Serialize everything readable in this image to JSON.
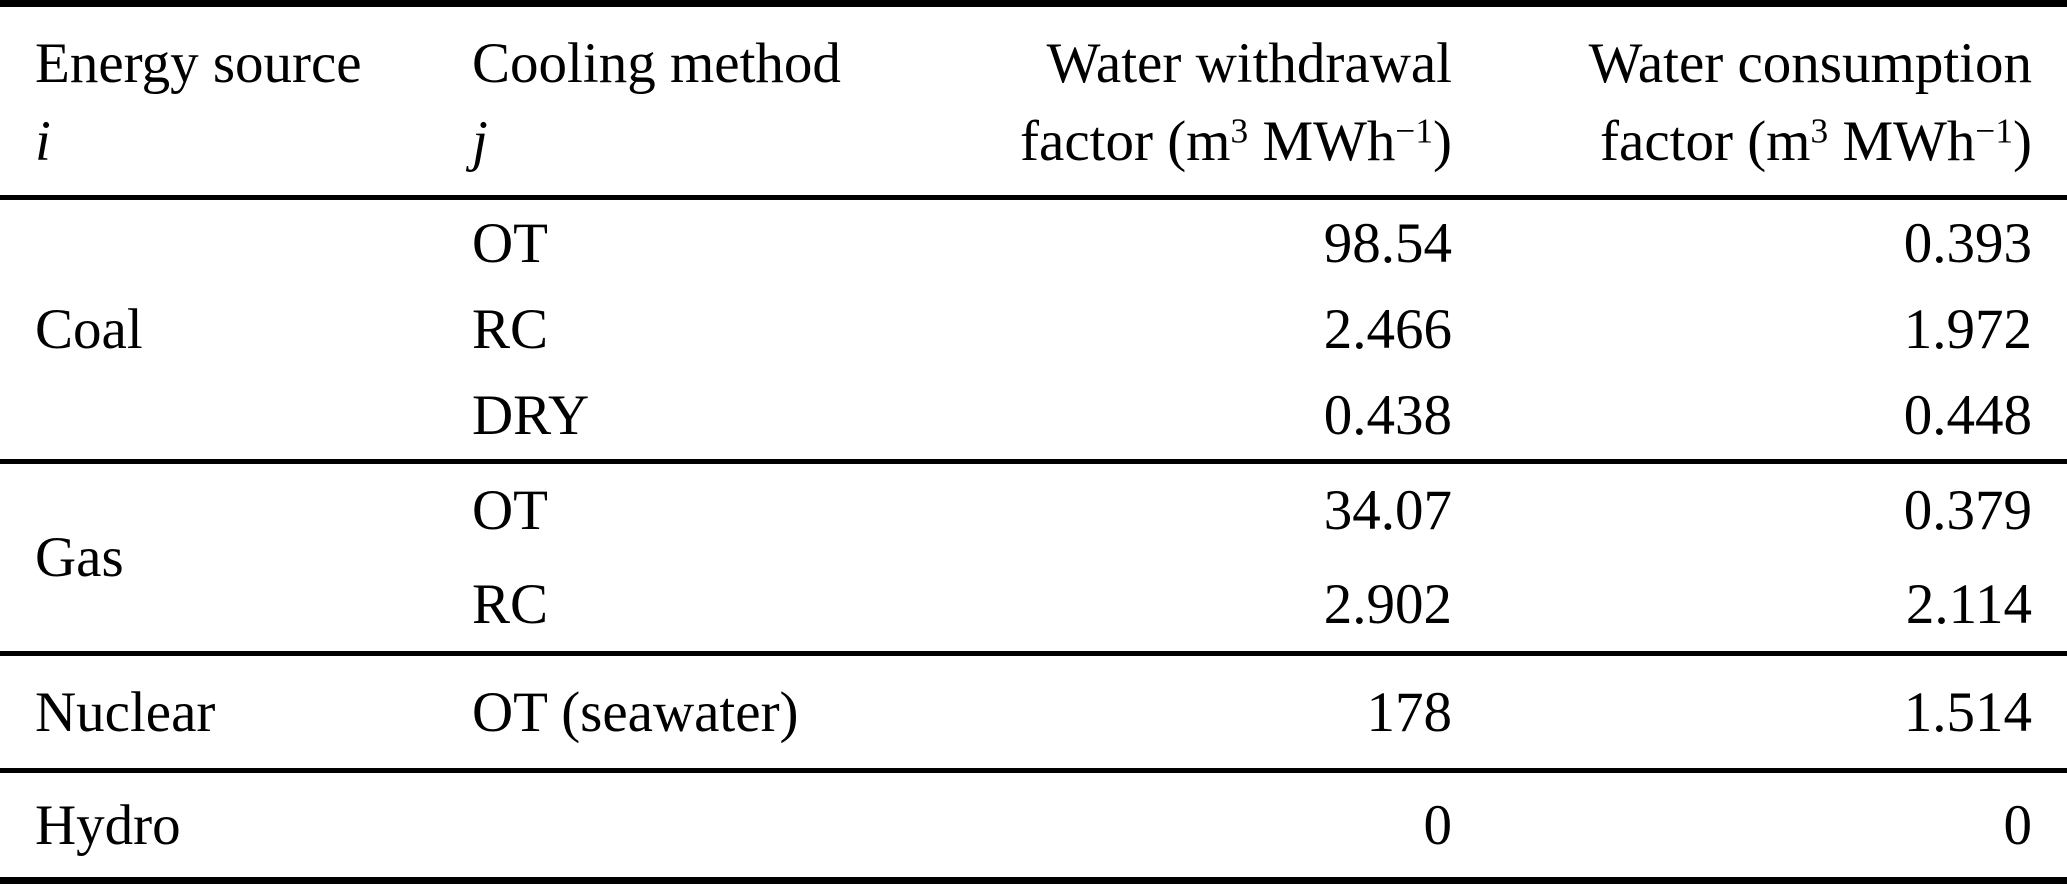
{
  "table": {
    "columns": {
      "energy": {
        "line1": "Energy source",
        "line2": "i"
      },
      "cooling": {
        "line1": "Cooling method",
        "line2": "j"
      },
      "withdrawal": {
        "line1": "Water withdrawal",
        "unit_prefix": "factor (m",
        "unit_sup_exp": "3",
        "unit_mid": " MWh",
        "unit_sup_neg": "−1",
        "unit_suffix": ")"
      },
      "consumption": {
        "line1": "Water consumption",
        "unit_prefix": "factor (m",
        "unit_sup_exp": "3",
        "unit_mid": " MWh",
        "unit_sup_neg": "−1",
        "unit_suffix": ")"
      }
    },
    "groups": [
      {
        "energy_source": "Coal",
        "rows": [
          {
            "cooling": "OT",
            "withdrawal": "98.54",
            "consumption": "0.393"
          },
          {
            "cooling": "RC",
            "withdrawal": "2.466",
            "consumption": "1.972"
          },
          {
            "cooling": "DRY",
            "withdrawal": "0.438",
            "consumption": "0.448"
          }
        ]
      },
      {
        "energy_source": "Gas",
        "rows": [
          {
            "cooling": "OT",
            "withdrawal": "34.07",
            "consumption": "0.379"
          },
          {
            "cooling": "RC",
            "withdrawal": "2.902",
            "consumption": "2.114"
          }
        ]
      },
      {
        "energy_source": "Nuclear",
        "rows": [
          {
            "cooling": "OT (seawater)",
            "withdrawal": "178",
            "consumption": "1.514"
          }
        ]
      },
      {
        "energy_source": "Hydro",
        "rows": [
          {
            "cooling": "",
            "withdrawal": "0",
            "consumption": "0"
          }
        ]
      }
    ]
  },
  "chart_data": {
    "type": "table",
    "columns": [
      "Energy source i",
      "Cooling method j",
      "Water withdrawal factor (m3 MWh-1)",
      "Water consumption factor (m3 MWh-1)"
    ],
    "rows": [
      [
        "Coal",
        "OT",
        98.54,
        0.393
      ],
      [
        "Coal",
        "RC",
        2.466,
        1.972
      ],
      [
        "Coal",
        "DRY",
        0.438,
        0.448
      ],
      [
        "Gas",
        "OT",
        34.07,
        0.379
      ],
      [
        "Gas",
        "RC",
        2.902,
        2.114
      ],
      [
        "Nuclear",
        "OT (seawater)",
        178,
        1.514
      ],
      [
        "Hydro",
        "",
        0,
        0
      ]
    ]
  }
}
